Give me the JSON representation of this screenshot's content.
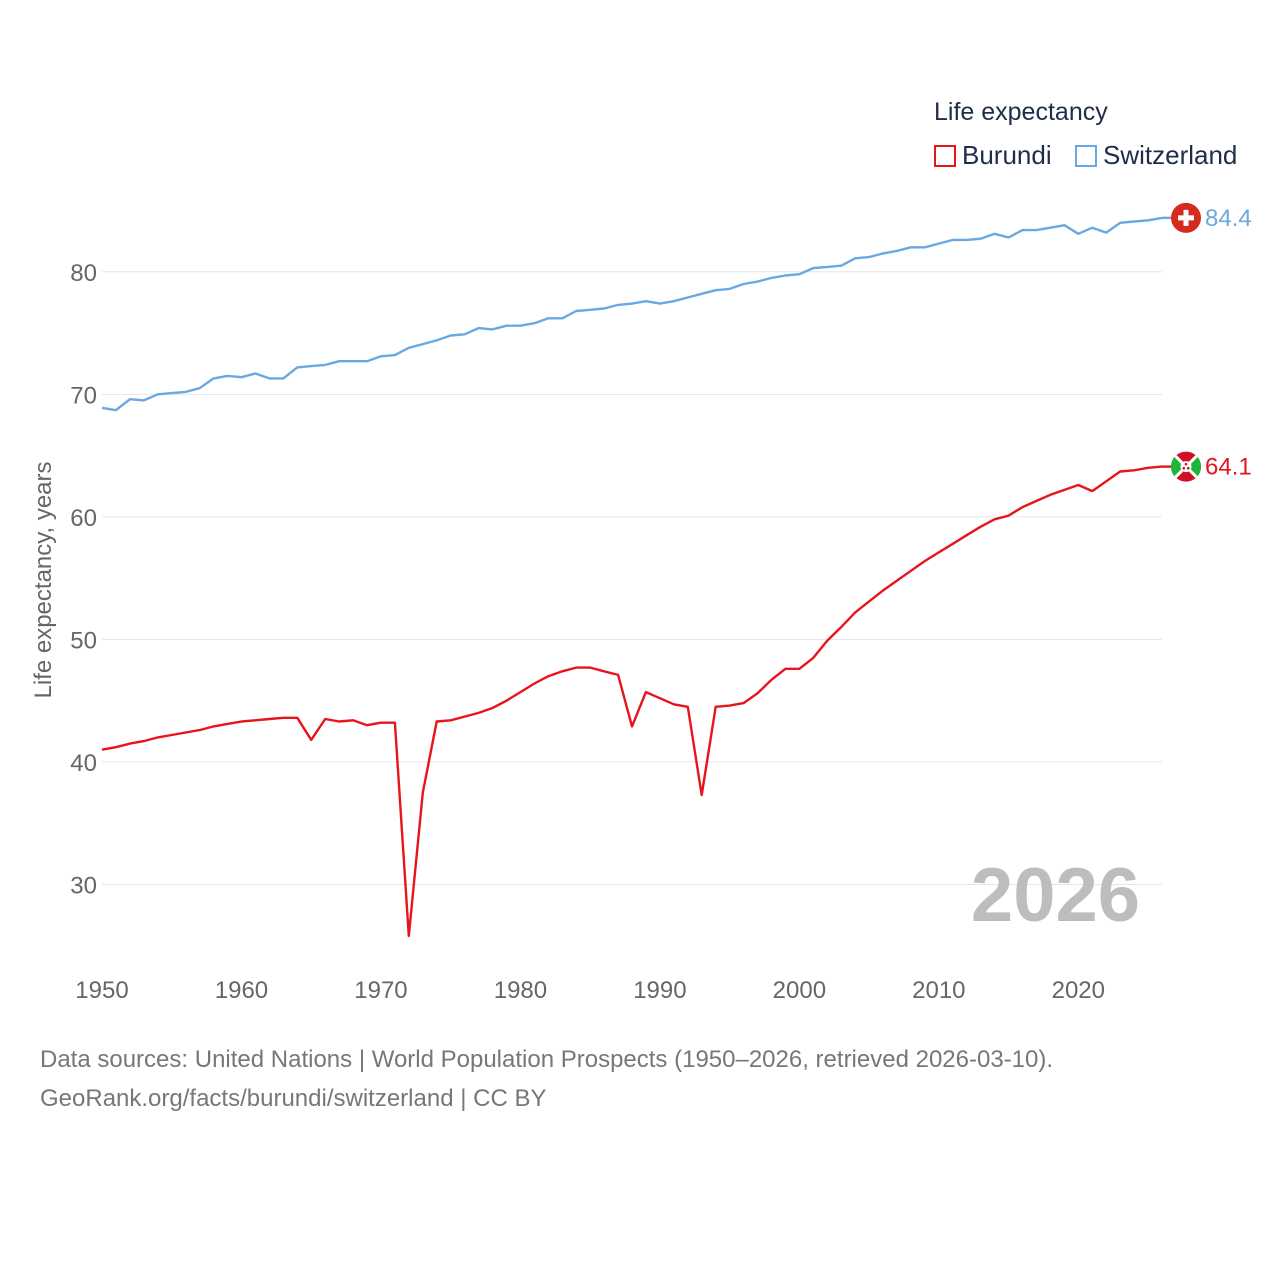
{
  "chart_data": {
    "type": "line",
    "title": "Life expectancy",
    "xlabel": "",
    "ylabel": "Life expectancy, years",
    "xlim": [
      1950,
      2026
    ],
    "ylim": [
      24,
      87
    ],
    "xticks": [
      1950,
      1960,
      1970,
      1980,
      1990,
      2000,
      2010,
      2020
    ],
    "yticks": [
      30,
      40,
      50,
      60,
      70,
      80
    ],
    "year_label": "2026",
    "series": [
      {
        "name": "Burundi",
        "color": "#e8141b",
        "end_label": "64.1",
        "x": [
          1950,
          1951,
          1952,
          1953,
          1954,
          1955,
          1956,
          1957,
          1958,
          1959,
          1960,
          1961,
          1962,
          1963,
          1964,
          1965,
          1966,
          1967,
          1968,
          1969,
          1970,
          1971,
          1972,
          1973,
          1974,
          1975,
          1976,
          1977,
          1978,
          1979,
          1980,
          1981,
          1982,
          1983,
          1984,
          1985,
          1986,
          1987,
          1988,
          1989,
          1990,
          1991,
          1992,
          1993,
          1994,
          1995,
          1996,
          1997,
          1998,
          1999,
          2000,
          2001,
          2002,
          2003,
          2004,
          2005,
          2006,
          2007,
          2008,
          2009,
          2010,
          2011,
          2012,
          2013,
          2014,
          2015,
          2016,
          2017,
          2018,
          2019,
          2020,
          2021,
          2022,
          2023,
          2024,
          2025,
          2026
        ],
        "values": [
          41.0,
          41.2,
          41.5,
          41.7,
          42.0,
          42.2,
          42.4,
          42.6,
          42.9,
          43.1,
          43.3,
          43.4,
          43.5,
          43.6,
          43.6,
          41.8,
          43.5,
          43.3,
          43.4,
          43.0,
          43.2,
          43.2,
          25.8,
          37.5,
          43.3,
          43.4,
          43.7,
          44.0,
          44.4,
          45.0,
          45.7,
          46.4,
          47.0,
          47.4,
          47.7,
          47.7,
          47.4,
          47.1,
          42.9,
          45.7,
          45.2,
          44.7,
          44.5,
          37.3,
          44.5,
          44.6,
          44.8,
          45.6,
          46.7,
          47.6,
          47.6,
          48.5,
          49.9,
          51.0,
          52.2,
          53.1,
          54.0,
          54.8,
          55.6,
          56.4,
          57.1,
          57.8,
          58.5,
          59.2,
          59.8,
          60.1,
          60.8,
          61.3,
          61.8,
          62.2,
          62.6,
          62.1,
          62.9,
          63.7,
          63.8,
          64.0,
          64.1
        ]
      },
      {
        "name": "Switzerland",
        "color": "#69a8e0",
        "end_label": "84.4",
        "x": [
          1950,
          1951,
          1952,
          1953,
          1954,
          1955,
          1956,
          1957,
          1958,
          1959,
          1960,
          1961,
          1962,
          1963,
          1964,
          1965,
          1966,
          1967,
          1968,
          1969,
          1970,
          1971,
          1972,
          1973,
          1974,
          1975,
          1976,
          1977,
          1978,
          1979,
          1980,
          1981,
          1982,
          1983,
          1984,
          1985,
          1986,
          1987,
          1988,
          1989,
          1990,
          1991,
          1992,
          1993,
          1994,
          1995,
          1996,
          1997,
          1998,
          1999,
          2000,
          2001,
          2002,
          2003,
          2004,
          2005,
          2006,
          2007,
          2008,
          2009,
          2010,
          2011,
          2012,
          2013,
          2014,
          2015,
          2016,
          2017,
          2018,
          2019,
          2020,
          2021,
          2022,
          2023,
          2024,
          2025,
          2026
        ],
        "values": [
          68.9,
          68.7,
          69.6,
          69.5,
          70.0,
          70.1,
          70.2,
          70.5,
          71.3,
          71.5,
          71.4,
          71.7,
          71.3,
          71.3,
          72.2,
          72.3,
          72.4,
          72.7,
          72.7,
          72.7,
          73.1,
          73.2,
          73.8,
          74.1,
          74.4,
          74.8,
          74.9,
          75.4,
          75.3,
          75.6,
          75.6,
          75.8,
          76.2,
          76.2,
          76.8,
          76.9,
          77.0,
          77.3,
          77.4,
          77.6,
          77.4,
          77.6,
          77.9,
          78.2,
          78.5,
          78.6,
          79.0,
          79.2,
          79.5,
          79.7,
          79.8,
          80.3,
          80.4,
          80.5,
          81.1,
          81.2,
          81.5,
          81.7,
          82.0,
          82.0,
          82.3,
          82.6,
          82.6,
          82.7,
          83.1,
          82.8,
          83.4,
          83.4,
          83.6,
          83.8,
          83.1,
          83.6,
          83.2,
          84.0,
          84.1,
          84.2,
          84.4
        ]
      }
    ]
  },
  "legend": {
    "title": "Life expectancy",
    "items": [
      "Burundi",
      "Switzerland"
    ]
  },
  "footer": {
    "line1": "Data sources: United Nations | World Population Prospects (1950–2026, retrieved 2026-03-10).",
    "line2": "GeoRank.org/facts/burundi/switzerland | CC BY"
  }
}
